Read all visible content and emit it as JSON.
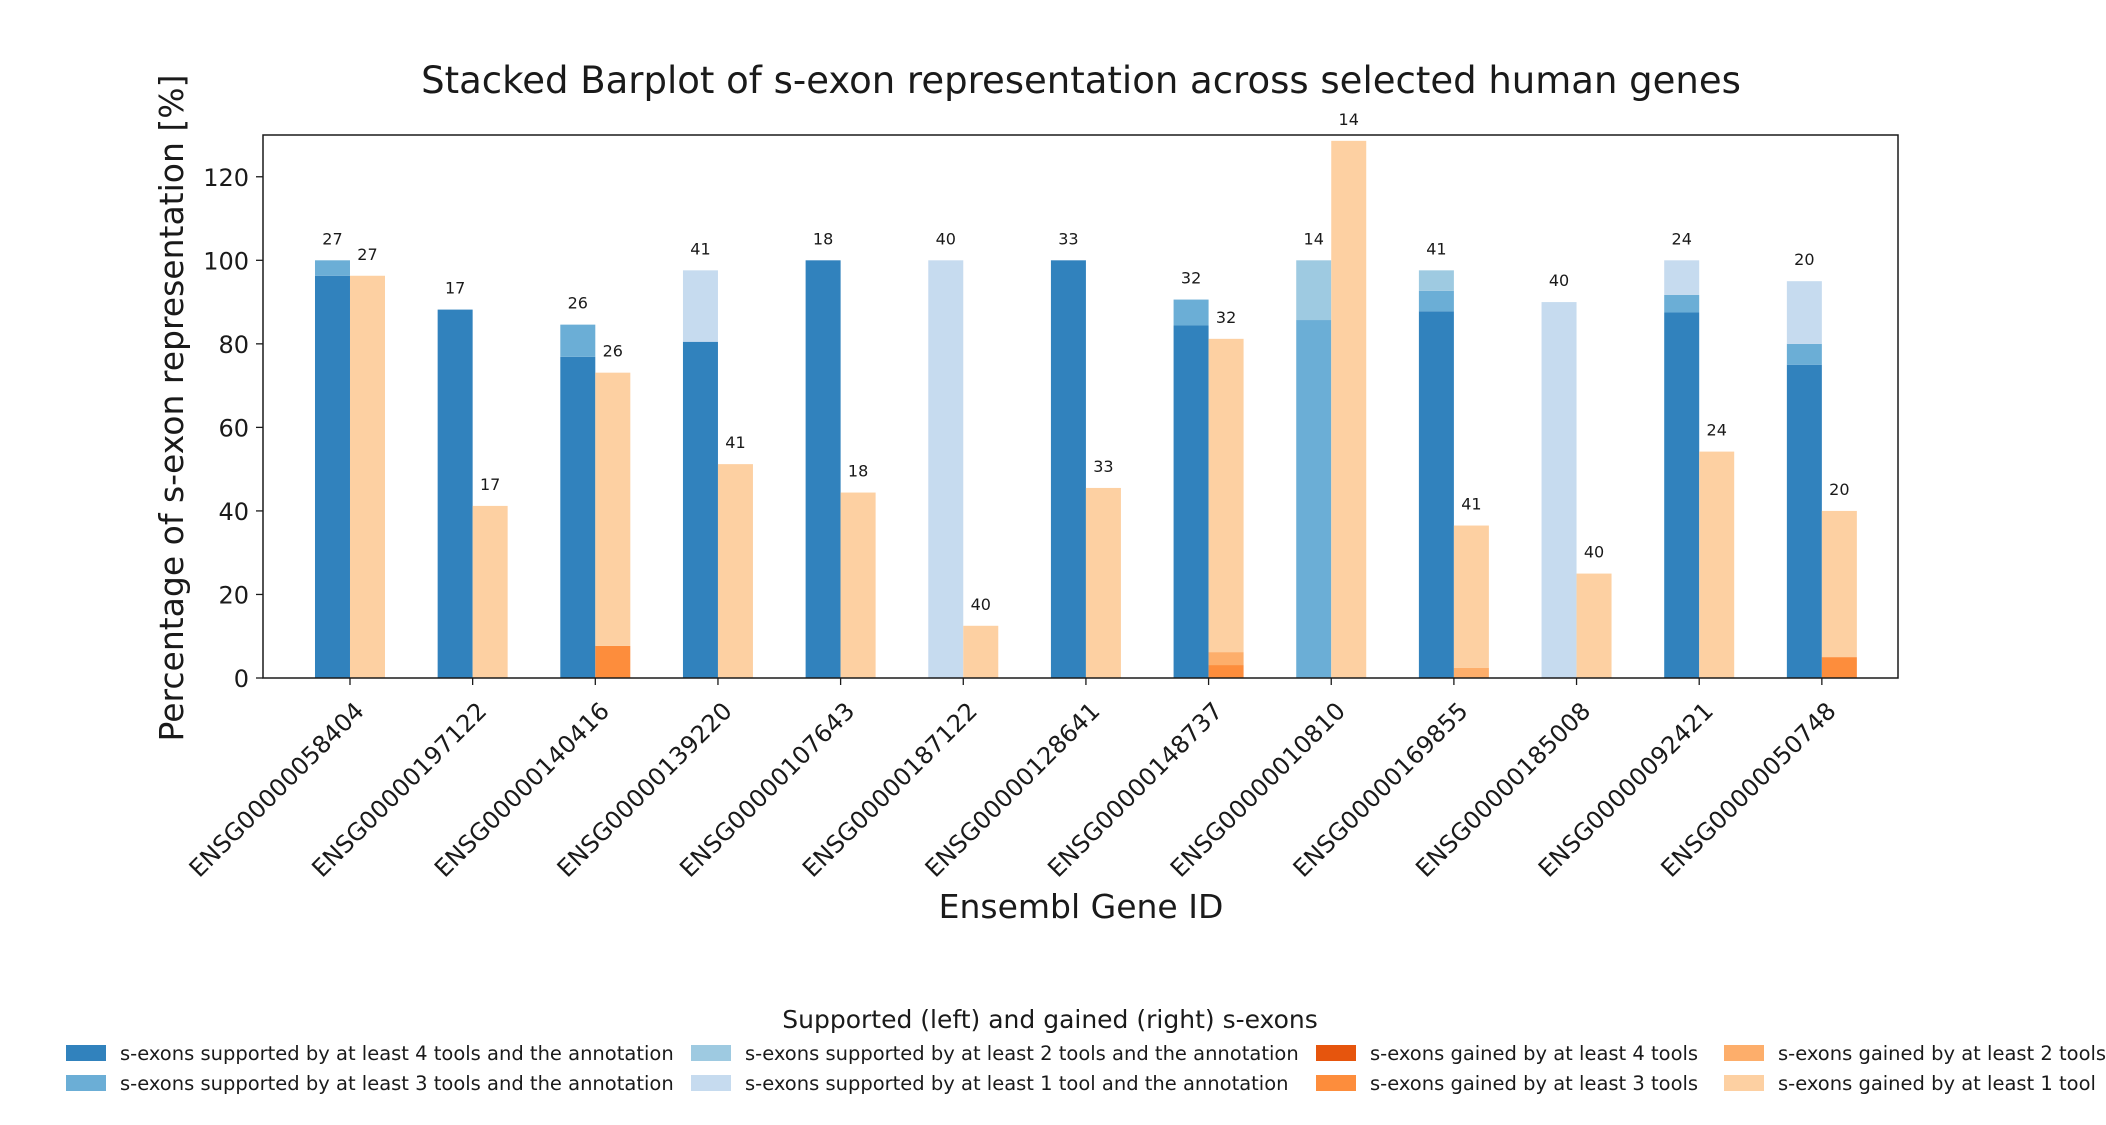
{
  "chart_data": {
    "type": "bar",
    "title": "Stacked Barplot of s-exon representation across selected human genes",
    "xlabel": "Ensembl Gene ID",
    "ylabel": "Percentage of s-exon representation [%]",
    "ylim": [
      0,
      130
    ],
    "yticks": [
      0,
      20,
      40,
      60,
      80,
      100,
      120
    ],
    "grid": false,
    "legend_title": "Supported (left) and gained (right) s-exons",
    "legend_position": "bottom-center",
    "categories": [
      "ENSG00000058404",
      "ENSG00000197122",
      "ENSG00000140416",
      "ENSG00000139220",
      "ENSG00000107643",
      "ENSG00000187122",
      "ENSG00000128641",
      "ENSG00000148737",
      "ENSG00000010810",
      "ENSG00000169855",
      "ENSG00000185008",
      "ENSG00000092421",
      "ENSG00000050748"
    ],
    "supported_series": [
      {
        "name": "s-exons supported by at least 4 tools and the annotation",
        "color": "#3182bd",
        "values": [
          96.3,
          88.2,
          76.9,
          80.5,
          100,
          0,
          100,
          84.4,
          0,
          87.8,
          0,
          87.5,
          75.0
        ]
      },
      {
        "name": "s-exons supported by at least 3 tools and the annotation",
        "color": "#6baed6",
        "values": [
          3.7,
          0,
          7.7,
          0,
          0,
          0,
          0,
          6.2,
          85.7,
          4.9,
          0,
          4.2,
          5.0
        ]
      },
      {
        "name": "s-exons supported by at least 2 tools and the annotation",
        "color": "#9ecae1",
        "values": [
          0,
          0,
          0,
          0,
          0,
          0,
          0,
          0,
          14.3,
          4.9,
          0,
          0,
          0
        ]
      },
      {
        "name": "s-exons supported by at least 1 tool and the annotation",
        "color": "#c6dbef",
        "values": [
          0,
          0,
          0,
          17.1,
          0,
          100,
          0,
          0,
          0,
          0,
          90.0,
          8.3,
          15.0
        ]
      }
    ],
    "gained_series": [
      {
        "name": "s-exons gained by at least 4 tools",
        "color": "#e6550d",
        "values": [
          0,
          0,
          0,
          0,
          0,
          0,
          0,
          0,
          0,
          0,
          0,
          0,
          0
        ]
      },
      {
        "name": "s-exons gained by at least 3 tools",
        "color": "#fd8d3c",
        "values": [
          0,
          0,
          7.7,
          0,
          0,
          0,
          0,
          3.1,
          0,
          0,
          0,
          0,
          5.0
        ]
      },
      {
        "name": "s-exons gained by at least 2 tools",
        "color": "#fdae6b",
        "values": [
          0,
          0,
          0,
          0,
          0,
          0,
          0,
          3.1,
          0,
          2.4,
          0,
          0,
          0
        ]
      },
      {
        "name": "s-exons gained by at least 1 tool",
        "color": "#fdd0a2",
        "values": [
          96.3,
          41.2,
          65.4,
          51.2,
          44.4,
          12.5,
          45.5,
          75.0,
          128.6,
          34.1,
          25.0,
          54.2,
          35.0
        ]
      }
    ],
    "supported_labels": [
      "27",
      "17",
      "26",
      "41",
      "18",
      "40",
      "33",
      "32",
      "14",
      "41",
      "40",
      "24",
      "20"
    ],
    "gained_labels": [
      "27",
      "17",
      "26",
      "41",
      "18",
      "40",
      "33",
      "32",
      "14",
      "41",
      "40",
      "24",
      "20"
    ],
    "legend_order": [
      0,
      2,
      4,
      6,
      1,
      3,
      5,
      7
    ]
  }
}
